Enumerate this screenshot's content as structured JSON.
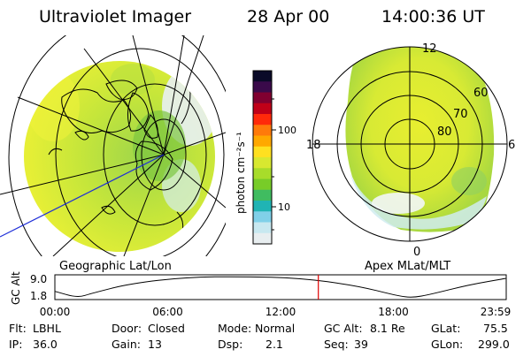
{
  "header": {
    "title": "Ultraviolet Imager",
    "date": "28 Apr 00",
    "time": "14:00:36 UT"
  },
  "geo_panel": {
    "caption": "Geographic Lat/Lon"
  },
  "apex_panel": {
    "caption": "Apex MLat/MLT",
    "mlt_labels": [
      "12",
      "18",
      "6",
      "0"
    ],
    "mlat_labels": [
      "60",
      "70",
      "80"
    ]
  },
  "colorbar": {
    "unit_label": "photon cm⁻²s⁻¹",
    "ticks": [
      "100",
      "10"
    ],
    "colors": [
      "#0a0a28",
      "#3a0a4a",
      "#800030",
      "#c00018",
      "#ff2a0a",
      "#ff7a0a",
      "#ffa800",
      "#ffe020",
      "#d8e830",
      "#a8dc2a",
      "#78cc28",
      "#40bc60",
      "#20b4b4",
      "#80d0e8",
      "#c8e8f0",
      "#e8eef0"
    ]
  },
  "altitude_plot": {
    "y_label": "GC Alt",
    "y_ticks": [
      "9.0",
      "1.8"
    ],
    "x_ticks": [
      "00:00",
      "06:00",
      "12:00",
      "18:00",
      "23:59"
    ],
    "marker_time_hours": 14.01,
    "orbit_curve": [
      {
        "t": 0.0,
        "alt": 4.0
      },
      {
        "t": 1.2,
        "alt": 1.8
      },
      {
        "t": 2.0,
        "alt": 3.4
      },
      {
        "t": 4.0,
        "alt": 6.6
      },
      {
        "t": 7.0,
        "alt": 8.8
      },
      {
        "t": 10.0,
        "alt": 9.0
      },
      {
        "t": 13.0,
        "alt": 8.5
      },
      {
        "t": 16.0,
        "alt": 6.0
      },
      {
        "t": 18.2,
        "alt": 2.5
      },
      {
        "t": 19.0,
        "alt": 1.8
      },
      {
        "t": 20.0,
        "alt": 3.0
      },
      {
        "t": 22.0,
        "alt": 6.2
      },
      {
        "t": 23.98,
        "alt": 8.4
      }
    ]
  },
  "info": {
    "row1": [
      {
        "label": "Flt:",
        "value": "LBHL"
      },
      {
        "label": "Door:",
        "value": "Closed"
      },
      {
        "label": "Mode:",
        "value": "Normal"
      },
      {
        "label": "GC Alt:",
        "value": "8.1 Re"
      },
      {
        "label": "GLat:",
        "value": "75.5"
      }
    ],
    "row2": [
      {
        "label": "IP:",
        "value": "36.0"
      },
      {
        "label": "Gain:",
        "value": "13"
      },
      {
        "label": "Dsp:",
        "value": "2.1"
      },
      {
        "label": "Seq:",
        "value": "39"
      },
      {
        "label": "GLon:",
        "value": "299.0"
      }
    ]
  }
}
